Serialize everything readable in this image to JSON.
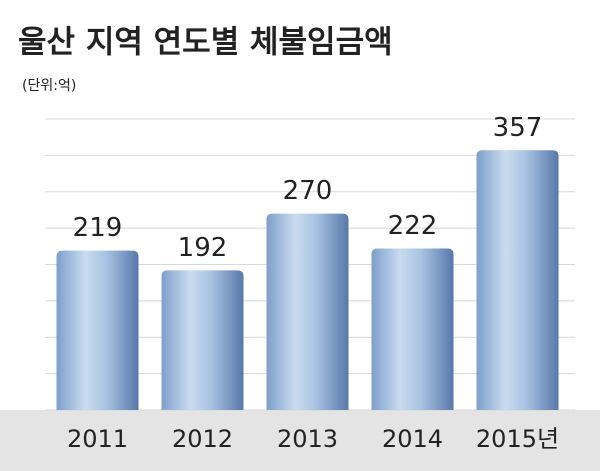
{
  "chart_data": {
    "type": "bar",
    "title": "울산 지역 연도별 체불임금액",
    "subtitle": "(단위:억)",
    "categories": [
      "2011",
      "2012",
      "2013",
      "2014",
      "2015년"
    ],
    "values": [
      219,
      192,
      270,
      222,
      357
    ],
    "ylim": [
      0,
      400
    ],
    "yticks": [
      0,
      50,
      100,
      150,
      200,
      250,
      300,
      350,
      400
    ],
    "grid": true
  }
}
